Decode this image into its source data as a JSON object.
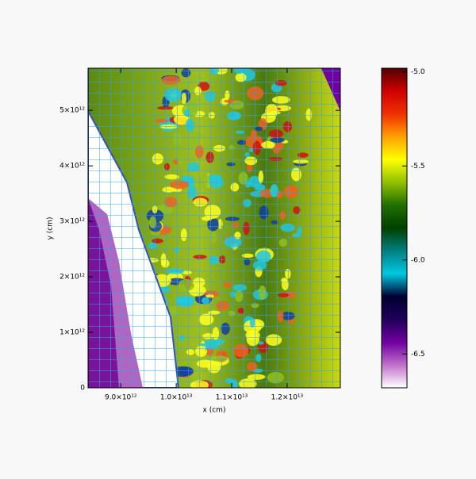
{
  "chart_data": {
    "type": "field-map",
    "xlabel": "x (cm)",
    "ylabel": "y (cm)",
    "xlim": [
      8410000000000.0,
      12960000000000.0
    ],
    "ylim": [
      0,
      5760000000000.0
    ],
    "xticks": [
      {
        "value": 9000000000000.0,
        "label": "9.0×10¹²"
      },
      {
        "value": 10000000000000.0,
        "label": "1.0×10¹³"
      },
      {
        "value": 11000000000000.0,
        "label": "1.1×10¹³"
      },
      {
        "value": 12000000000000.0,
        "label": "1.2×10¹³"
      }
    ],
    "yticks": [
      0,
      {
        "value": 1000000000000.0,
        "label": "1×10¹²"
      },
      {
        "value": 2000000000000.0,
        "label": "2×10¹²"
      },
      {
        "value": 3000000000000.0,
        "label": "3×10¹²"
      },
      {
        "value": 4000000000000.0,
        "label": "4×10¹²"
      },
      {
        "value": 5000000000000.0,
        "label": "5×10¹²"
      }
    ],
    "colorbar": {
      "clim": [
        -6.68,
        -4.98
      ],
      "ticks": [
        {
          "value": -5.0,
          "label": "-5.0"
        },
        {
          "value": -5.5,
          "label": "-5.5"
        },
        {
          "value": -6.0,
          "label": "-6.0"
        },
        {
          "value": -6.5,
          "label": "-6.5"
        }
      ],
      "colors": [
        "#ffffff",
        "#c070c8",
        "#7000a0",
        "#20005a",
        "#000030",
        "#00c8e0",
        "#008080",
        "#004000",
        "#207000",
        "#90c000",
        "#ffff00",
        "#ffa000",
        "#f03000",
        "#d00000",
        "#500000"
      ]
    }
  }
}
